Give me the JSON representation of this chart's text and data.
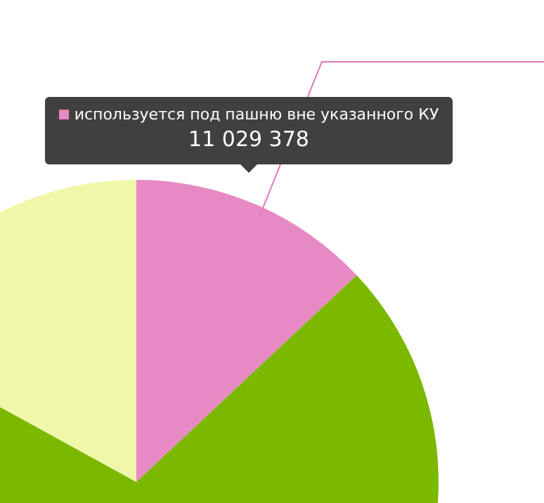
{
  "chart_data": {
    "type": "pie",
    "categories": [
      "используется под пашню вне указанного КУ",
      null,
      null
    ],
    "values": [
      13,
      70,
      17
    ],
    "colors": [
      "#e78ac3",
      "#7cb800",
      "#f0f7a8"
    ],
    "annotations": [
      "11 029 378"
    ],
    "legend": "top"
  }
}
